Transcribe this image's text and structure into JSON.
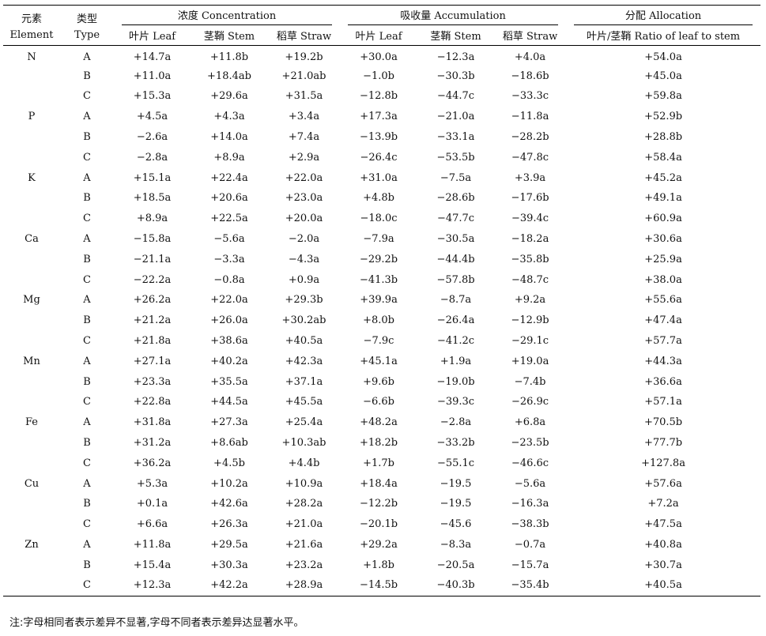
{
  "headers": {
    "element_zh": "元素",
    "element_en": "Element",
    "type_zh": "类型",
    "type_en": "Type",
    "groups": [
      "浓度 Concentration",
      "吸收量 Accumulation",
      "分配 Allocation"
    ],
    "sub": [
      "叶片 Leaf",
      "茎鞘 Stem",
      "稻草 Straw",
      "叶片 Leaf",
      "茎鞘 Stem",
      "稻草 Straw",
      "叶片/茎鞘 Ratio of leaf to stem"
    ]
  },
  "rows": [
    {
      "element": "N",
      "type": "A",
      "values": [
        "+14.7a",
        "+11.8b",
        "+19.2b",
        "+30.0a",
        "−12.3a",
        "+4.0a",
        "+54.0a"
      ]
    },
    {
      "element": "",
      "type": "B",
      "values": [
        "+11.0a",
        "+18.4ab",
        "+21.0ab",
        "−1.0b",
        "−30.3b",
        "−18.6b",
        "+45.0a"
      ]
    },
    {
      "element": "",
      "type": "C",
      "values": [
        "+15.3a",
        "+29.6a",
        "+31.5a",
        "−12.8b",
        "−44.7c",
        "−33.3c",
        "+59.8a"
      ]
    },
    {
      "element": "P",
      "type": "A",
      "values": [
        "+4.5a",
        "+4.3a",
        "+3.4a",
        "+17.3a",
        "−21.0a",
        "−11.8a",
        "+52.9b"
      ]
    },
    {
      "element": "",
      "type": "B",
      "values": [
        "−2.6a",
        "+14.0a",
        "+7.4a",
        "−13.9b",
        "−33.1a",
        "−28.2b",
        "+28.8b"
      ]
    },
    {
      "element": "",
      "type": "C",
      "values": [
        "−2.8a",
        "+8.9a",
        "+2.9a",
        "−26.4c",
        "−53.5b",
        "−47.8c",
        "+58.4a"
      ]
    },
    {
      "element": "K",
      "type": "A",
      "values": [
        "+15.1a",
        "+22.4a",
        "+22.0a",
        "+31.0a",
        "−7.5a",
        "+3.9a",
        "+45.2a"
      ]
    },
    {
      "element": "",
      "type": "B",
      "values": [
        "+18.5a",
        "+20.6a",
        "+23.0a",
        "+4.8b",
        "−28.6b",
        "−17.6b",
        "+49.1a"
      ]
    },
    {
      "element": "",
      "type": "C",
      "values": [
        "+8.9a",
        "+22.5a",
        "+20.0a",
        "−18.0c",
        "−47.7c",
        "−39.4c",
        "+60.9a"
      ]
    },
    {
      "element": "Ca",
      "type": "A",
      "values": [
        "−15.8a",
        "−5.6a",
        "−2.0a",
        "−7.9a",
        "−30.5a",
        "−18.2a",
        "+30.6a"
      ]
    },
    {
      "element": "",
      "type": "B",
      "values": [
        "−21.1a",
        "−3.3a",
        "−4.3a",
        "−29.2b",
        "−44.4b",
        "−35.8b",
        "+25.9a"
      ]
    },
    {
      "element": "",
      "type": "C",
      "values": [
        "−22.2a",
        "−0.8a",
        "+0.9a",
        "−41.3b",
        "−57.8b",
        "−48.7c",
        "+38.0a"
      ]
    },
    {
      "element": "Mg",
      "type": "A",
      "values": [
        "+26.2a",
        "+22.0a",
        "+29.3b",
        "+39.9a",
        "−8.7a",
        "+9.2a",
        "+55.6a"
      ]
    },
    {
      "element": "",
      "type": "B",
      "values": [
        "+21.2a",
        "+26.0a",
        "+30.2ab",
        "+8.0b",
        "−26.4a",
        "−12.9b",
        "+47.4a"
      ]
    },
    {
      "element": "",
      "type": "C",
      "values": [
        "+21.8a",
        "+38.6a",
        "+40.5a",
        "−7.9c",
        "−41.2c",
        "−29.1c",
        "+57.7a"
      ]
    },
    {
      "element": "Mn",
      "type": "A",
      "values": [
        "+27.1a",
        "+40.2a",
        "+42.3a",
        "+45.1a",
        "+1.9a",
        "+19.0a",
        "+44.3a"
      ]
    },
    {
      "element": "",
      "type": "B",
      "values": [
        "+23.3a",
        "+35.5a",
        "+37.1a",
        "+9.6b",
        "−19.0b",
        "−7.4b",
        "+36.6a"
      ]
    },
    {
      "element": "",
      "type": "C",
      "values": [
        "+22.8a",
        "+44.5a",
        "+45.5a",
        "−6.6b",
        "−39.3c",
        "−26.9c",
        "+57.1a"
      ]
    },
    {
      "element": "Fe",
      "type": "A",
      "values": [
        "+31.8a",
        "+27.3a",
        "+25.4a",
        "+48.2a",
        "−2.8a",
        "+6.8a",
        "+70.5b"
      ]
    },
    {
      "element": "",
      "type": "B",
      "values": [
        "+31.2a",
        "+8.6ab",
        "+10.3ab",
        "+18.2b",
        "−33.2b",
        "−23.5b",
        "+77.7b"
      ]
    },
    {
      "element": "",
      "type": "C",
      "values": [
        "+36.2a",
        "+4.5b",
        "+4.4b",
        "+1.7b",
        "−55.1c",
        "−46.6c",
        "+127.8a"
      ]
    },
    {
      "element": "Cu",
      "type": "A",
      "values": [
        "+5.3a",
        "+10.2a",
        "+10.9a",
        "+18.4a",
        "−19.5",
        "−5.6a",
        "+57.6a"
      ]
    },
    {
      "element": "",
      "type": "B",
      "values": [
        "+0.1a",
        "+42.6a",
        "+28.2a",
        "−12.2b",
        "−19.5",
        "−16.3a",
        "+7.2a"
      ]
    },
    {
      "element": "",
      "type": "C",
      "values": [
        "+6.6a",
        "+26.3a",
        "+21.0a",
        "−20.1b",
        "−45.6",
        "−38.3b",
        "+47.5a"
      ]
    },
    {
      "element": "Zn",
      "type": "A",
      "values": [
        "+11.8a",
        "+29.5a",
        "+21.6a",
        "+29.2a",
        "−8.3a",
        "−0.7a",
        "+40.8a"
      ]
    },
    {
      "element": "",
      "type": "B",
      "values": [
        "+15.4a",
        "+30.3a",
        "+23.2a",
        "+1.8b",
        "−20.5a",
        "−15.7a",
        "+30.7a"
      ]
    },
    {
      "element": "",
      "type": "C",
      "values": [
        "+12.3a",
        "+42.2a",
        "+28.9a",
        "−14.5b",
        "−40.3b",
        "−35.4b",
        "+40.5a"
      ]
    }
  ],
  "note": "注:字母相同者表示差异不显著,字母不同者表示差异达显著水平。"
}
